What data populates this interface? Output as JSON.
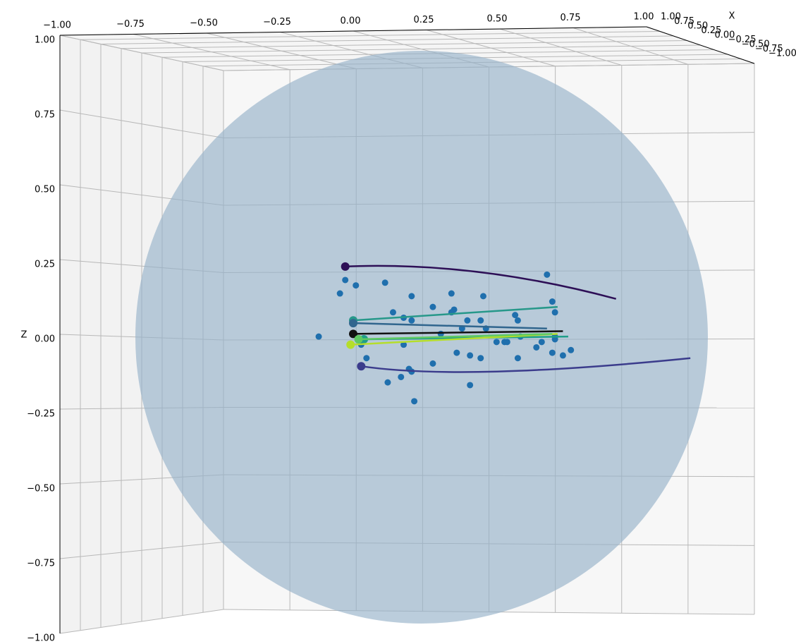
{
  "chart_data": {
    "type": "scatter",
    "xlabel": "X",
    "zlabel": "Z",
    "xlim": [
      -1,
      1
    ],
    "ylim": [
      -1,
      1
    ],
    "zlim": [
      -1,
      1
    ],
    "xticks": [
      {
        "value": 1,
        "label": "1.00"
      },
      {
        "value": 0.75,
        "label": "0.75"
      },
      {
        "value": 0.5,
        "label": "0.50"
      },
      {
        "value": 0.25,
        "label": "0.25"
      },
      {
        "value": 0,
        "label": "0.00"
      },
      {
        "value": -0.25,
        "label": "−0.25"
      },
      {
        "value": -0.5,
        "label": "−0.50"
      },
      {
        "value": -0.75,
        "label": "−0.75"
      },
      {
        "value": -1,
        "label": "−1.00"
      }
    ],
    "yticks": [
      {
        "value": -1,
        "label": "−1.00"
      },
      {
        "value": -0.75,
        "label": "−0.75"
      },
      {
        "value": -0.5,
        "label": "−0.50"
      },
      {
        "value": -0.25,
        "label": "−0.25"
      },
      {
        "value": 0,
        "label": "0.00"
      },
      {
        "value": 0.25,
        "label": "0.25"
      },
      {
        "value": 0.5,
        "label": "0.50"
      },
      {
        "value": 0.75,
        "label": "0.75"
      },
      {
        "value": 1,
        "label": "1.00"
      }
    ],
    "zticks": [
      {
        "value": 1,
        "label": "1.00"
      },
      {
        "value": 0.75,
        "label": "0.75"
      },
      {
        "value": 0.5,
        "label": "0.50"
      },
      {
        "value": 0.25,
        "label": "0.25"
      },
      {
        "value": 0,
        "label": "0.00"
      },
      {
        "value": -0.25,
        "label": "−0.25"
      },
      {
        "value": -0.5,
        "label": "−0.50"
      },
      {
        "value": -0.75,
        "label": "−0.75"
      },
      {
        "value": -1,
        "label": "−1.00"
      }
    ],
    "points": {
      "color": "#1f6fad",
      "y": [
        0.22,
        -0.54,
        -0.5,
        -0.39,
        -0.56,
        -0.29,
        -0.14,
        -0.02,
        -0.21,
        -0.13,
        -0.14,
        -0.36,
        0.24,
        0.25,
        -0.32,
        -0.29,
        -0.08,
        -0.03,
        0.1,
        0.11,
        -0.1,
        -0.01,
        -0.64,
        -0.18,
        0.12,
        0.25,
        0.25,
        0.03,
        0.06,
        0.07,
        0.2,
        0.18,
        -0.48,
        -0.32,
        -0.12,
        -0.07,
        -0.03,
        0.24,
        0.28,
        0.31,
        -0.46,
        0.11,
        -0.21,
        -0.3,
        -0.29,
        -0.33,
        -0.38,
        -0.07,
        -0.28
      ],
      "z": [
        0.24,
        0.22,
        0.2,
        0.21,
        0.17,
        0.16,
        0.17,
        0.16,
        0.12,
        0.11,
        0.1,
        0.1,
        0.14,
        0.1,
        0.08,
        0.07,
        0.07,
        0.07,
        0.09,
        0.07,
        0.04,
        0.04,
        0.01,
        0.02,
        0.01,
        0.01,
        0.0,
        -0.01,
        -0.01,
        -0.01,
        -0.01,
        -0.03,
        -0.02,
        -0.02,
        -0.05,
        -0.06,
        -0.07,
        -0.05,
        -0.06,
        -0.04,
        -0.07,
        -0.07,
        -0.09,
        -0.11,
        -0.12,
        -0.14,
        -0.16,
        -0.17,
        -0.23
      ]
    },
    "series": [
      {
        "color": "#2d0f56",
        "y": [
          -0.54,
          -0.04,
          0.48
        ],
        "z": [
          0.27,
          0.25,
          0.15
        ]
      },
      {
        "color": "#3b3c8c",
        "y": [
          -0.48,
          0.02,
          0.76
        ],
        "z": [
          -0.1,
          -0.12,
          -0.07
        ]
      },
      {
        "color": "#27988a",
        "y": [
          -0.51,
          0.26
        ],
        "z": [
          0.07,
          0.12
        ]
      },
      {
        "color": "#31668e",
        "y": [
          -0.51,
          0.22
        ],
        "z": [
          0.06,
          0.04
        ]
      },
      {
        "color": "#111111",
        "y": [
          -0.51,
          0.28
        ],
        "z": [
          0.02,
          0.03
        ]
      },
      {
        "color": "#1f9e89",
        "y": [
          -0.47,
          0.3
        ],
        "z": [
          0.0,
          0.01
        ]
      },
      {
        "color": "#b5de2b",
        "y": [
          -0.52,
          0.26
        ],
        "z": [
          -0.02,
          0.02
        ]
      },
      {
        "color": "#5ec962",
        "y": [
          -0.49,
          0.24
        ],
        "z": [
          0.0,
          0.02
        ]
      }
    ]
  }
}
